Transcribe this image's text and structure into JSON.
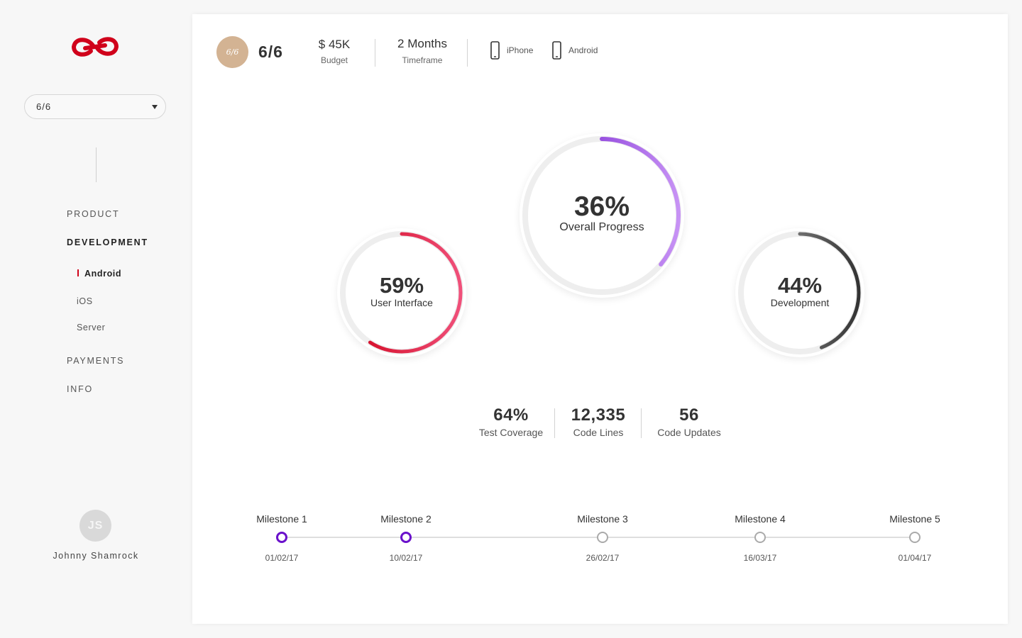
{
  "sidebar": {
    "project_select": {
      "value": "6/6"
    },
    "nav": [
      {
        "label": "PRODUCT"
      },
      {
        "label": "DEVELOPMENT"
      },
      {
        "label": "PAYMENTS"
      },
      {
        "label": "INFO"
      }
    ],
    "sub_nav": [
      {
        "label": "Android"
      },
      {
        "label": "iOS"
      },
      {
        "label": "Server"
      }
    ],
    "user": {
      "initials": "JS",
      "name": "Johnny Shamrock"
    },
    "brand_color": "#d0021b"
  },
  "header": {
    "badge": "6/6",
    "project": "6/6",
    "budget": {
      "value": "$ 45K",
      "label": "Budget"
    },
    "timeframe": {
      "value": "2 Months",
      "label": "Timeframe"
    },
    "devices": [
      {
        "label": "iPhone",
        "icon": "phone-icon"
      },
      {
        "label": "Android",
        "icon": "phone-icon"
      }
    ]
  },
  "progress": {
    "user_interface": {
      "pct_text": "59%",
      "value": 0.59,
      "label": "User Interface",
      "colors": [
        "#f0507a",
        "#d0021b"
      ]
    },
    "overall": {
      "pct_text": "36%",
      "value": 0.36,
      "label": "Overall Progress",
      "colors": [
        "#6a11cb",
        "#c792f5"
      ]
    },
    "development": {
      "pct_text": "44%",
      "value": 0.44,
      "label": "Development",
      "colors": [
        "#a8a8a8",
        "#333333"
      ]
    }
  },
  "metrics": [
    {
      "value": "64%",
      "label": "Test Coverage"
    },
    {
      "value": "12,335",
      "label": "Code Lines"
    },
    {
      "value": "56",
      "label": "Code Updates"
    }
  ],
  "milestones": [
    {
      "name": "Milestone 1",
      "date": "01/02/17",
      "done": true
    },
    {
      "name": "Milestone 2",
      "date": "10/02/17",
      "done": true
    },
    {
      "name": "Milestone 3",
      "date": "26/02/17",
      "done": false
    },
    {
      "name": "Milestone 4",
      "date": "16/03/17",
      "done": false
    },
    {
      "name": "Milestone 5",
      "date": "01/04/17",
      "done": false
    }
  ],
  "accent_color": "#6a11cb"
}
